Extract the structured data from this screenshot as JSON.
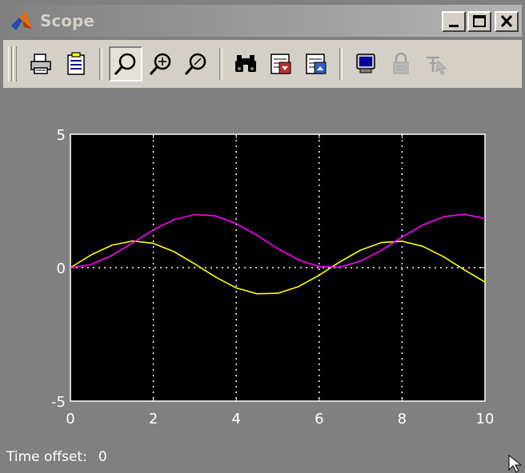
{
  "window": {
    "title": "Scope",
    "icons": {
      "app": "matlab-logo-icon",
      "minimize": "minimize-icon",
      "maximize": "maximize-icon",
      "close": "close-icon"
    }
  },
  "toolbar": {
    "buttons": [
      {
        "name": "print",
        "icon": "printer-icon",
        "pressed": false
      },
      {
        "name": "parameters",
        "icon": "parameters-icon",
        "pressed": false
      },
      {
        "name": "zoom",
        "icon": "zoom-icon",
        "pressed": true
      },
      {
        "name": "zoom-x",
        "icon": "zoom-x-icon",
        "pressed": false
      },
      {
        "name": "zoom-y",
        "icon": "zoom-y-icon",
        "pressed": false
      },
      {
        "name": "autoscale",
        "icon": "binoculars-icon",
        "pressed": false
      },
      {
        "name": "save-axes",
        "icon": "save-axes-icon",
        "pressed": false
      },
      {
        "name": "restore-axes",
        "icon": "restore-axes-icon",
        "pressed": false
      },
      {
        "name": "floating-scope",
        "icon": "floating-scope-icon",
        "pressed": false
      },
      {
        "name": "lock-axes",
        "icon": "lock-icon",
        "disabled": true
      },
      {
        "name": "signal-selector",
        "icon": "signal-selector-icon",
        "disabled": true
      }
    ]
  },
  "status": {
    "label": "Time offset:",
    "value": "0"
  },
  "colors": {
    "plot_background": "#000000",
    "figure_background": "#808080",
    "series_1": "#ffff00",
    "series_2": "#ff00ff",
    "grid": "#ffffff"
  },
  "chart_data": {
    "type": "line",
    "title": "",
    "xlabel": "",
    "ylabel": "",
    "xlim": [
      0,
      10
    ],
    "ylim": [
      -5,
      5
    ],
    "x_ticks": [
      "0",
      "2",
      "4",
      "6",
      "8",
      "10"
    ],
    "y_ticks": [
      "5",
      "0",
      "-5"
    ],
    "grid": true,
    "series": [
      {
        "color": "#ffff00",
        "x": [
          0,
          0.5,
          1,
          1.5,
          2,
          2.5,
          3,
          3.5,
          4,
          4.5,
          5,
          5.5,
          6,
          6.5,
          7,
          7.5,
          8,
          8.5,
          9,
          9.5,
          10
        ],
        "y": [
          0,
          0.48,
          0.84,
          1.0,
          0.91,
          0.6,
          0.14,
          -0.35,
          -0.76,
          -0.98,
          -0.96,
          -0.71,
          -0.28,
          0.22,
          0.66,
          0.94,
          0.99,
          0.8,
          0.41,
          -0.08,
          -0.54
        ]
      },
      {
        "color": "#ff00ff",
        "x": [
          0,
          0.5,
          1,
          1.5,
          2,
          2.5,
          3,
          3.5,
          4,
          4.5,
          5,
          5.5,
          6,
          6.5,
          7,
          7.5,
          8,
          8.5,
          9,
          9.5,
          10
        ],
        "y": [
          0,
          0.12,
          0.46,
          0.93,
          1.42,
          1.8,
          1.99,
          1.94,
          1.65,
          1.21,
          0.72,
          0.29,
          0.04,
          0.02,
          0.25,
          0.65,
          1.15,
          1.6,
          1.91,
          2.0,
          1.84
        ]
      }
    ]
  }
}
